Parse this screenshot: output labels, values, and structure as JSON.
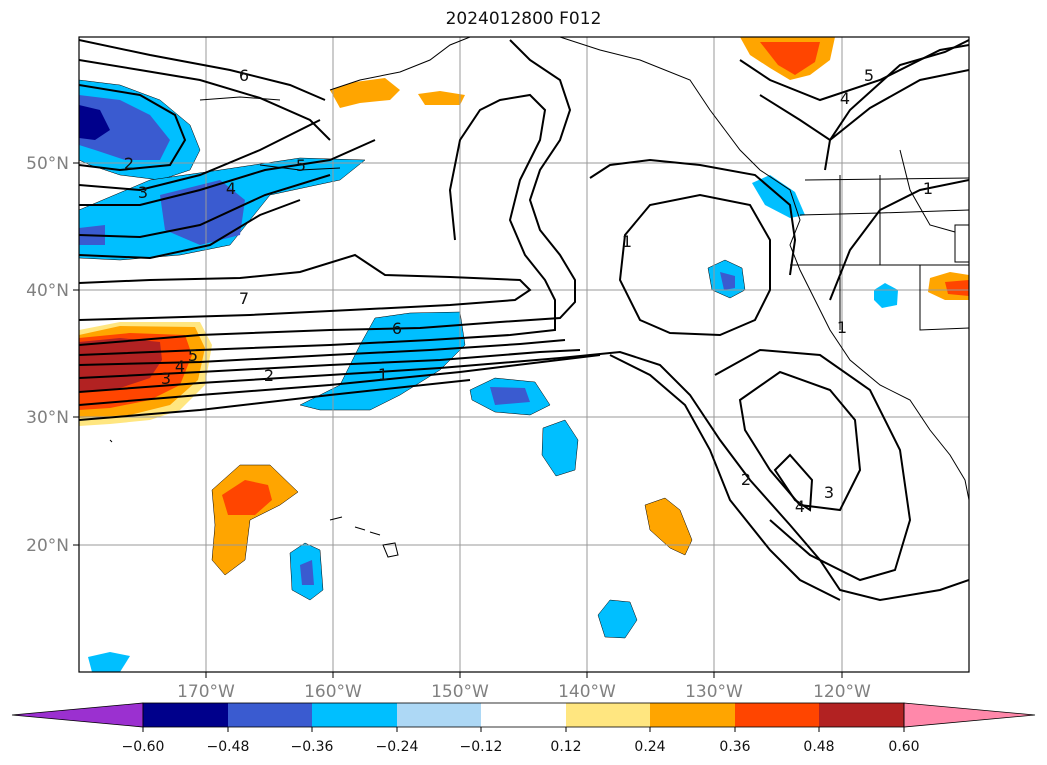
{
  "title": "2024012800 F012",
  "map": {
    "lat_ticks": [
      "50°N",
      "40°N",
      "30°N",
      "20°N"
    ],
    "lon_ticks": [
      "170°W",
      "160°W",
      "150°W",
      "140°W",
      "130°W",
      "120°W"
    ],
    "grid": true,
    "projection": "lat-lon",
    "extent": {
      "lon_min": -180,
      "lon_max": -110,
      "lat_min": 10,
      "lat_max": 60
    }
  },
  "contours": {
    "labels": [
      "6",
      "2",
      "3",
      "4",
      "5",
      "7",
      "6",
      "5",
      "4",
      "3",
      "2",
      "1",
      "1",
      "5",
      "4",
      "1",
      "1",
      "2",
      "3",
      "4"
    ],
    "color": "#000000"
  },
  "colorbar": {
    "ticks": [
      "−0.60",
      "−0.48",
      "−0.36",
      "−0.24",
      "−0.12",
      "0.12",
      "0.24",
      "0.36",
      "0.48",
      "0.60"
    ],
    "colors": [
      "#9b30d0",
      "#00008b",
      "#3a5bd0",
      "#00bfff",
      "#add8f5",
      "#ffffff",
      "#ffe680",
      "#ffa500",
      "#ff4500",
      "#b22222",
      "#ff88aa"
    ],
    "extend": "both"
  }
}
